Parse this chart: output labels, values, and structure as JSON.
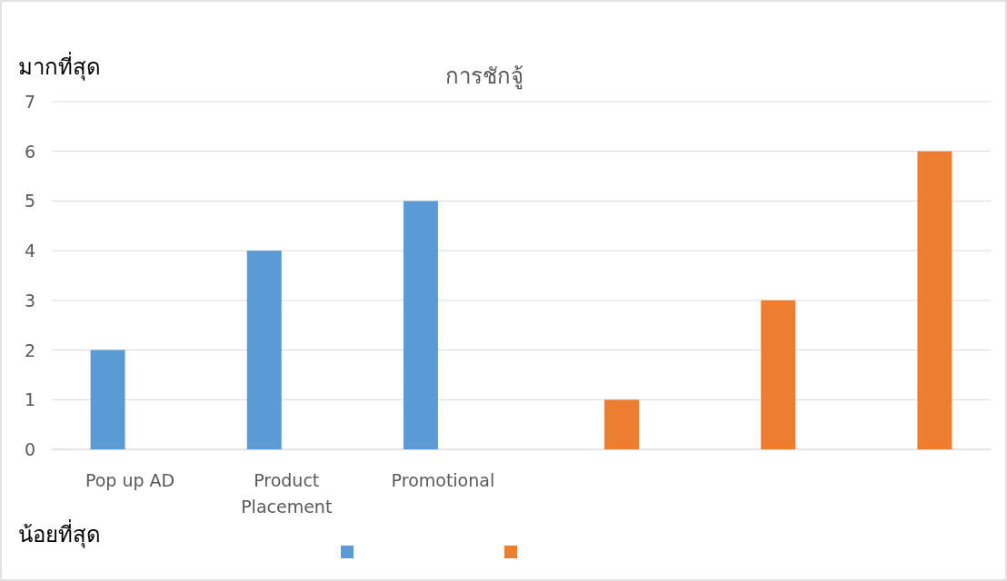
{
  "chart_data": {
    "type": "bar",
    "title": "การชักจู้",
    "annotations": [
      "มากที่สุด",
      "น้อยที่สุด"
    ],
    "categories": [
      "Pop up AD",
      "Product Placement",
      "Promotional",
      null,
      null,
      null
    ],
    "series": [
      {
        "color": "#5b9bd5",
        "values": [
          2,
          4,
          5,
          null,
          null,
          null
        ]
      },
      {
        "color": "#ed7d31",
        "values": [
          null,
          null,
          null,
          1,
          3,
          6
        ]
      }
    ],
    "ylim": [
      0,
      7
    ],
    "yticks": [
      0,
      1,
      2,
      3,
      4,
      5,
      6,
      7
    ],
    "grid": "y"
  }
}
